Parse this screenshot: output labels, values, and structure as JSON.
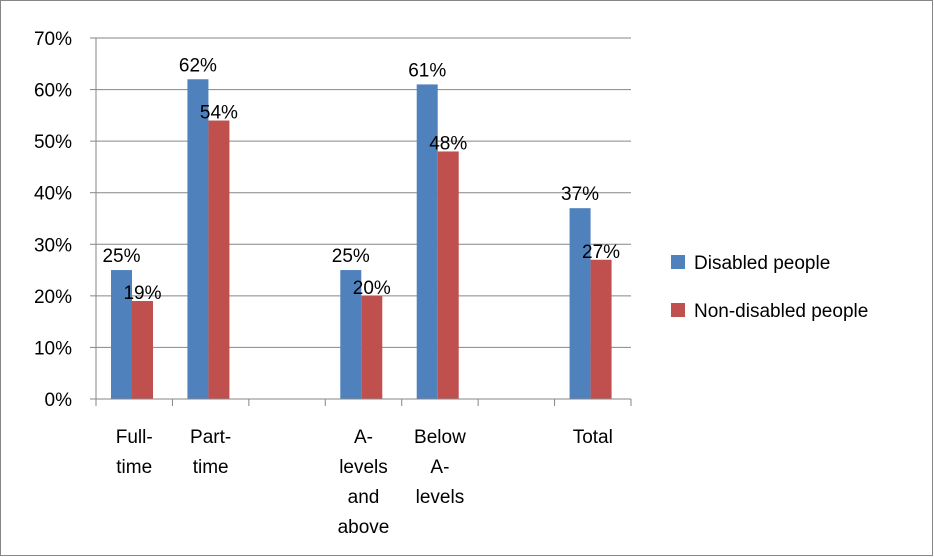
{
  "chart_data": {
    "type": "bar",
    "categories": [
      [
        "Full-",
        "time"
      ],
      [
        "Part-",
        "time"
      ],
      [],
      [
        "A-",
        "levels",
        "and",
        "above"
      ],
      [
        "Below",
        "A-",
        "levels"
      ],
      [],
      [
        "Total"
      ]
    ],
    "series": [
      {
        "name": "Disabled people",
        "color": "#4F81BD",
        "values": [
          25,
          62,
          null,
          25,
          61,
          null,
          37
        ],
        "labels": [
          "25%",
          "62%",
          "",
          "25%",
          "61%",
          "",
          "37%"
        ]
      },
      {
        "name": "Non-disabled people",
        "color": "#C0504D",
        "values": [
          19,
          54,
          null,
          20,
          48,
          null,
          27
        ],
        "labels": [
          "19%",
          "54%",
          "",
          "20%",
          "48%",
          "",
          "27%"
        ]
      }
    ],
    "y_ticks": [
      "0%",
      "10%",
      "20%",
      "30%",
      "40%",
      "50%",
      "60%",
      "70%"
    ],
    "ylim": [
      0,
      70
    ],
    "grid": true,
    "legend_position": "right",
    "title": "",
    "xlabel": "",
    "ylabel": ""
  }
}
